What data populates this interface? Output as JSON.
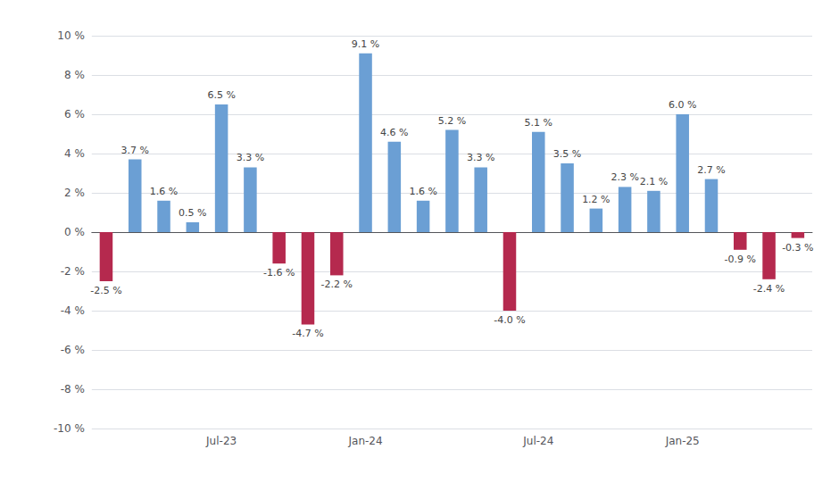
{
  "chart_data": {
    "type": "bar",
    "categories": [
      null,
      null,
      null,
      null,
      "Jul-23",
      null,
      null,
      null,
      null,
      "Jan-24",
      null,
      null,
      null,
      null,
      null,
      "Jul-24",
      null,
      null,
      null,
      null,
      "Jan-25",
      null,
      null,
      null,
      null
    ],
    "values": [
      -2.5,
      3.7,
      1.6,
      0.5,
      6.5,
      3.3,
      -1.6,
      -4.7,
      -2.2,
      9.1,
      4.6,
      1.6,
      5.2,
      3.3,
      -4.0,
      5.1,
      3.5,
      1.2,
      2.3,
      2.1,
      6.0,
      2.7,
      -0.9,
      -2.4,
      -0.3
    ],
    "value_labels": [
      "-2.5 %",
      "3.7 %",
      "1.6 %",
      "0.5 %",
      "6.5 %",
      "3.3 %",
      "-1.6 %",
      "-4.7 %",
      "-2.2 %",
      "9.1 %",
      "4.6 %",
      "1.6 %",
      "5.2 %",
      "3.3 %",
      "-4.0 %",
      "5.1 %",
      "3.5 %",
      "1.2 %",
      "2.3 %",
      "2.1 %",
      "6.0 %",
      "2.7 %",
      "-0.9 %",
      "-2.4 %",
      "-0.3 %"
    ],
    "colors": [
      "#b5294e",
      "#6b9fd4",
      "#6b9fd4",
      "#6b9fd4",
      "#6b9fd4",
      "#6b9fd4",
      "#b5294e",
      "#b5294e",
      "#b5294e",
      "#6b9fd4",
      "#6b9fd4",
      "#6b9fd4",
      "#6b9fd4",
      "#6b9fd4",
      "#b5294e",
      "#6b9fd4",
      "#6b9fd4",
      "#6b9fd4",
      "#6b9fd4",
      "#6b9fd4",
      "#6b9fd4",
      "#6b9fd4",
      "#b5294e",
      "#b5294e",
      "#b5294e"
    ],
    "ylim": [
      -10,
      10
    ],
    "yticks": [
      {
        "value": -10,
        "label": "-10 %"
      },
      {
        "value": -8,
        "label": "-8 %"
      },
      {
        "value": -6,
        "label": "-6 %"
      },
      {
        "value": -4,
        "label": "-4 %"
      },
      {
        "value": -2,
        "label": "-2 %"
      },
      {
        "value": 0,
        "label": "0 %"
      },
      {
        "value": 2,
        "label": "2 %"
      },
      {
        "value": 4,
        "label": "4 %"
      },
      {
        "value": 6,
        "label": "6 %"
      },
      {
        "value": 8,
        "label": "8 %"
      },
      {
        "value": 10,
        "label": "10 %"
      }
    ],
    "grid": true,
    "data_labels": true
  }
}
